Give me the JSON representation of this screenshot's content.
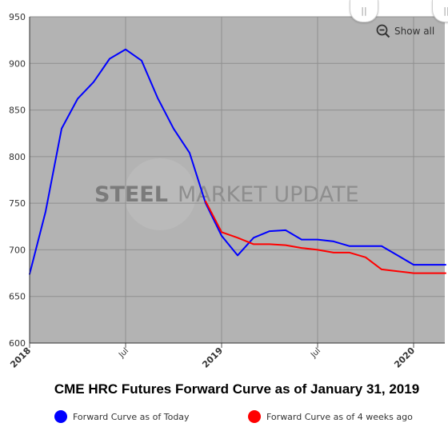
{
  "colors": {
    "plot_background": "#b3b3b3",
    "grid": "#8f8f8f",
    "series_today": "#0000ff",
    "series_4_weeks_ago": "#ff0000"
  },
  "toolbar": {
    "show_all_label": "Show all",
    "zoom_icon": "zoom-out-icon"
  },
  "watermark": {
    "strong": "STEEL",
    "light": "MARKET UPDATE"
  },
  "chart_data": {
    "type": "line",
    "title": "CME HRC Futures Forward Curve as of January 31, 2019",
    "xlabel": "",
    "ylabel": "",
    "x_range": [
      "2018-01",
      "2020-05"
    ],
    "ylim": [
      600,
      950
    ],
    "y_ticks": [
      600,
      650,
      700,
      750,
      800,
      850,
      900,
      950
    ],
    "x_ticks": [
      {
        "label": "2018",
        "x": "2018-01",
        "major": true
      },
      {
        "label": "Jul",
        "x": "2018-07",
        "major": false
      },
      {
        "label": "2019",
        "x": "2019-01",
        "major": true
      },
      {
        "label": "Jul",
        "x": "2019-07",
        "major": false
      },
      {
        "label": "2020",
        "x": "2020-01",
        "major": true
      }
    ],
    "grid": true,
    "legend_position": "bottom",
    "series": [
      {
        "name": "Forward Curve as of Today",
        "color": "#0000ff",
        "points": [
          [
            "2018-01",
            674
          ],
          [
            "2018-02",
            741
          ],
          [
            "2018-03",
            830
          ],
          [
            "2018-04",
            862
          ],
          [
            "2018-05",
            880
          ],
          [
            "2018-06",
            905
          ],
          [
            "2018-07",
            915
          ],
          [
            "2018-08",
            903
          ],
          [
            "2018-09",
            863
          ],
          [
            "2018-10",
            830
          ],
          [
            "2018-11",
            804
          ],
          [
            "2018-12",
            750
          ],
          [
            "2019-01",
            715
          ],
          [
            "2019-02",
            694
          ],
          [
            "2019-03",
            713
          ],
          [
            "2019-04",
            720
          ],
          [
            "2019-05",
            721
          ],
          [
            "2019-06",
            711
          ],
          [
            "2019-07",
            711
          ],
          [
            "2019-08",
            709
          ],
          [
            "2019-09",
            704
          ],
          [
            "2019-10",
            704
          ],
          [
            "2019-11",
            704
          ],
          [
            "2019-12",
            694
          ],
          [
            "2020-01",
            684
          ],
          [
            "2020-02",
            684
          ],
          [
            "2020-03",
            684
          ]
        ]
      },
      {
        "name": "Forward Curve as of 4 weeks ago",
        "color": "#ff0000",
        "points": [
          [
            "2018-12",
            752
          ],
          [
            "2019-01",
            719
          ],
          [
            "2019-02",
            713
          ],
          [
            "2019-03",
            706
          ],
          [
            "2019-04",
            706
          ],
          [
            "2019-05",
            705
          ],
          [
            "2019-06",
            702
          ],
          [
            "2019-07",
            700
          ],
          [
            "2019-08",
            697
          ],
          [
            "2019-09",
            697
          ],
          [
            "2019-10",
            692
          ],
          [
            "2019-11",
            679
          ],
          [
            "2019-12",
            677
          ],
          [
            "2020-01",
            675
          ],
          [
            "2020-02",
            675
          ],
          [
            "2020-03",
            675
          ]
        ]
      }
    ]
  }
}
